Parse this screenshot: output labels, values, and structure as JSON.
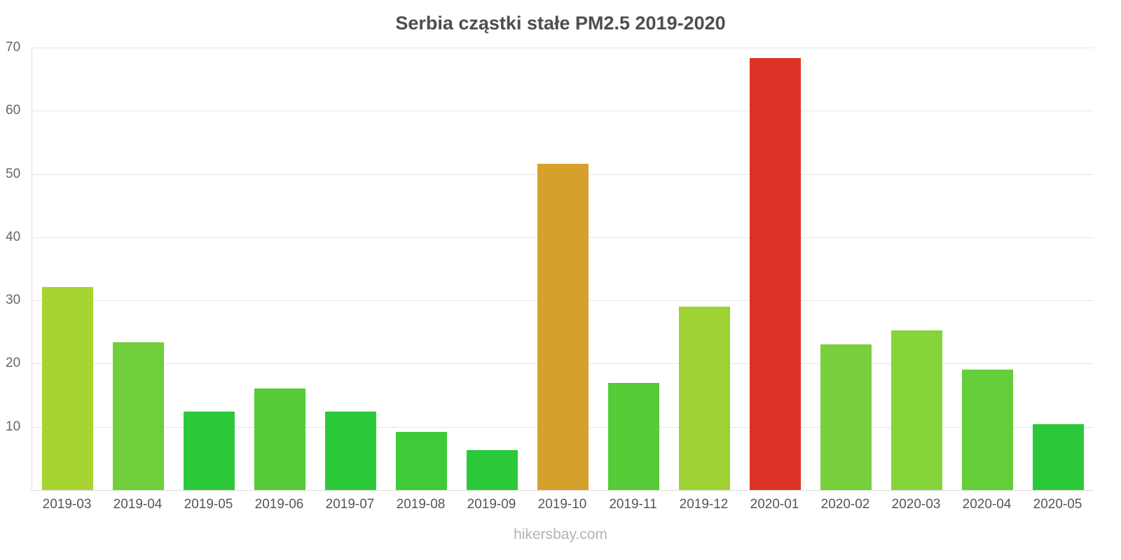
{
  "chart_data": {
    "type": "bar",
    "title": "Serbia cząstki stałe PM2.5 2019-2020",
    "categories": [
      "2019-03",
      "2019-04",
      "2019-05",
      "2019-06",
      "2019-07",
      "2019-08",
      "2019-09",
      "2019-10",
      "2019-11",
      "2019-12",
      "2020-01",
      "2020-02",
      "2020-03",
      "2020-04",
      "2020-05"
    ],
    "values": [
      32.1,
      23.4,
      12.4,
      16.1,
      12.4,
      9.2,
      6.3,
      51.6,
      16.9,
      29.0,
      68.3,
      23.0,
      25.2,
      19.0,
      10.4
    ],
    "colors": [
      "#a8d432",
      "#6fce3a",
      "#2bc93a",
      "#54cb37",
      "#2bc93a",
      "#3fca38",
      "#2bc93a",
      "#d5a02b",
      "#54cb37",
      "#9ed234",
      "#dd3227",
      "#78d03c",
      "#85d43a",
      "#63cd3a",
      "#2bc93a"
    ],
    "xlabel": "",
    "ylabel": "",
    "ylim": [
      0,
      70
    ],
    "yticks": [
      10,
      20,
      30,
      40,
      50,
      60,
      70
    ],
    "grid": true,
    "legend": "none"
  },
  "footer": {
    "text": "hikersbay.com"
  }
}
